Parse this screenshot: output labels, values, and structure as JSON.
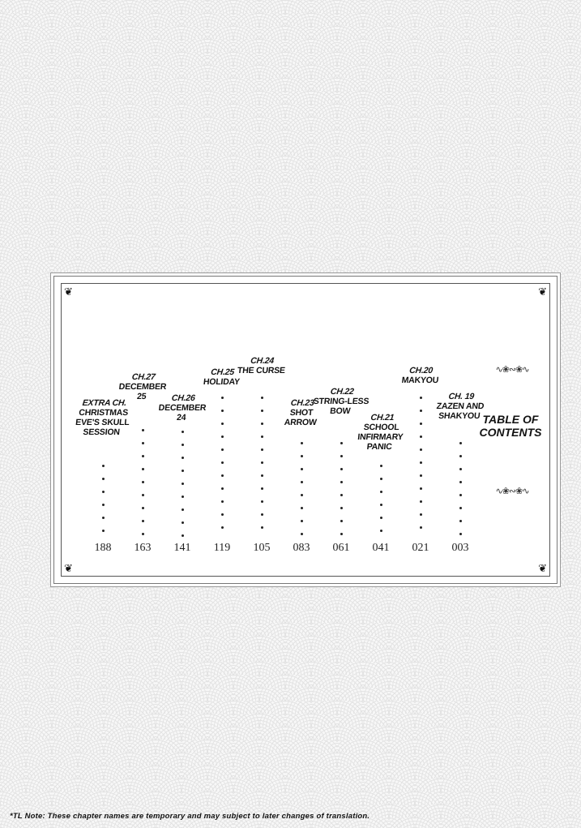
{
  "table_title": "Table of Contents",
  "entries": [
    {
      "chapter": "Extra Ch.",
      "title": "Christmas Eve's Skull Session",
      "page": "188"
    },
    {
      "chapter": "Ch.27",
      "title": "December 25",
      "page": "163"
    },
    {
      "chapter": "Ch.26",
      "title": "December 24",
      "page": "141"
    },
    {
      "chapter": "Ch.25",
      "title": "Holiday",
      "page": "119"
    },
    {
      "chapter": "Ch.24",
      "title": "The Curse",
      "page": "105"
    },
    {
      "chapter": "Ch.23",
      "title": "Shot Arrow",
      "page": "083"
    },
    {
      "chapter": "Ch.22",
      "title": "String-less Bow",
      "page": "061"
    },
    {
      "chapter": "Ch.21",
      "title": "School Infirmary Panic",
      "page": "041"
    },
    {
      "chapter": "Ch.20",
      "title": "Makyou",
      "page": "021"
    },
    {
      "chapter": "Ch. 19",
      "title": "Zazen and Shakyou",
      "page": "003"
    }
  ],
  "ornament_icon": "floral-scroll-icon",
  "corner_icon": "leaf-corner-icon",
  "footnote": "*TL Note: These chapter names are temporary and may subject to later changes of translation."
}
